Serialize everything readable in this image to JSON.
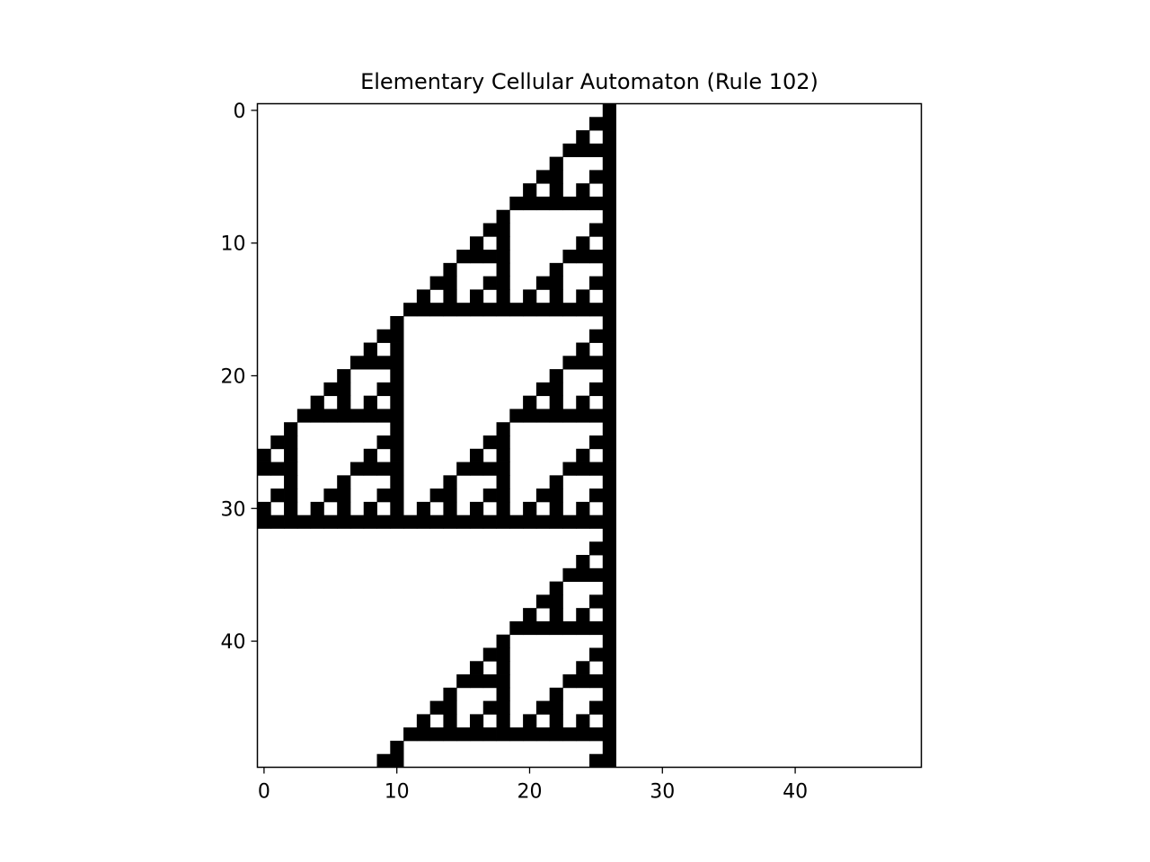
{
  "chart_data": {
    "type": "heatmap",
    "title": "Elementary Cellular Automaton  (Rule 102)",
    "rule": 102,
    "cells": {
      "rows": 50,
      "cols": 50,
      "seed_column": 26,
      "colormap": "binary"
    },
    "x_ticks": [
      0,
      10,
      20,
      30,
      40
    ],
    "y_ticks": [
      0,
      10,
      20,
      30,
      40
    ],
    "xlim": [
      -0.5,
      49.5
    ],
    "ylim": [
      49.5,
      -0.5
    ],
    "grid": false,
    "colors": {
      "alive": "#000000",
      "dead": "#ffffff",
      "frame": "#000000"
    }
  }
}
